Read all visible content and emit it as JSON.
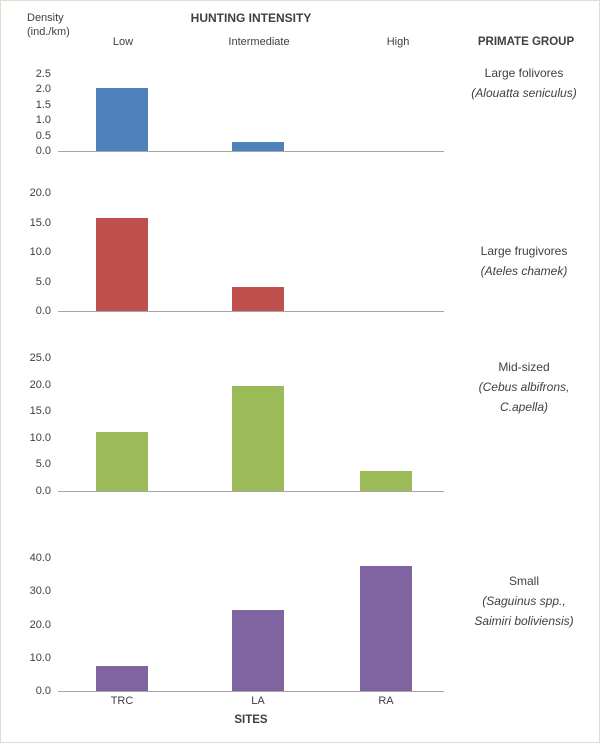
{
  "header": {
    "density_line1": "Density",
    "density_line2": "(ind./km)",
    "title": "HUNTING INTENSITY",
    "columns": {
      "low": "Low",
      "intermediate": "Intermediate",
      "high": "High"
    },
    "right_title": "PRIMATE GROUP"
  },
  "footer": {
    "sites": [
      "TRC",
      "LA",
      "RA"
    ],
    "xlabel": "SITES"
  },
  "group_labels": [
    {
      "line1": "Large folivores",
      "line2": "(Alouatta seniculus)",
      "line3": ""
    },
    {
      "line1": "Large frugivores",
      "line2": "(Ateles chamek)",
      "line3": ""
    },
    {
      "line1": "Mid-sized",
      "line2": "(Cebus albifrons,",
      "line3": "C.apella)"
    },
    {
      "line1": "Small",
      "line2": "(Saguinus spp.,",
      "line3": "Saimiri boliviensis)"
    }
  ],
  "chart_data": {
    "type": "bar",
    "title": "HUNTING INTENSITY",
    "xlabel": "SITES",
    "ylabel": "Density (ind./km)",
    "categories": [
      "TRC",
      "LA",
      "RA"
    ],
    "hunting_levels": [
      "Low",
      "Intermediate",
      "High"
    ],
    "grid": false,
    "legend": "none",
    "panels": [
      {
        "group": "Large folivores",
        "species": "Alouatta seniculus",
        "color": "#4f81bd",
        "ylim": [
          0,
          2.5
        ],
        "ymax": 2.5,
        "yticks": [
          "2.5",
          "2.0",
          "1.5",
          "1.0",
          "0.5",
          "0.0"
        ],
        "values": [
          2.05,
          0.3,
          0
        ]
      },
      {
        "group": "Large frugivores",
        "species": "Ateles chamek",
        "color": "#c0504d",
        "ylim": [
          0,
          20
        ],
        "ymax": 20,
        "yticks": [
          "20.0",
          "15.0",
          "10.0",
          "5.0",
          "0.0"
        ],
        "values": [
          15.8,
          4.0,
          0
        ]
      },
      {
        "group": "Mid-sized",
        "species": "Cebus albifrons, C.apella",
        "color": "#9bbb59",
        "ylim": [
          0,
          25
        ],
        "ymax": 25,
        "yticks": [
          "25.0",
          "20.0",
          "15.0",
          "10.0",
          "5.0",
          "0.0"
        ],
        "values": [
          11.0,
          19.8,
          3.8
        ]
      },
      {
        "group": "Small",
        "species": "Saguinus spp., Saimiri boliviensis",
        "color": "#8064a2",
        "ylim": [
          0,
          40
        ],
        "ymax": 40,
        "yticks": [
          "40.0",
          "30.0",
          "20.0",
          "10.0",
          "0.0"
        ],
        "values": [
          7.5,
          24.5,
          37.5
        ]
      }
    ]
  }
}
